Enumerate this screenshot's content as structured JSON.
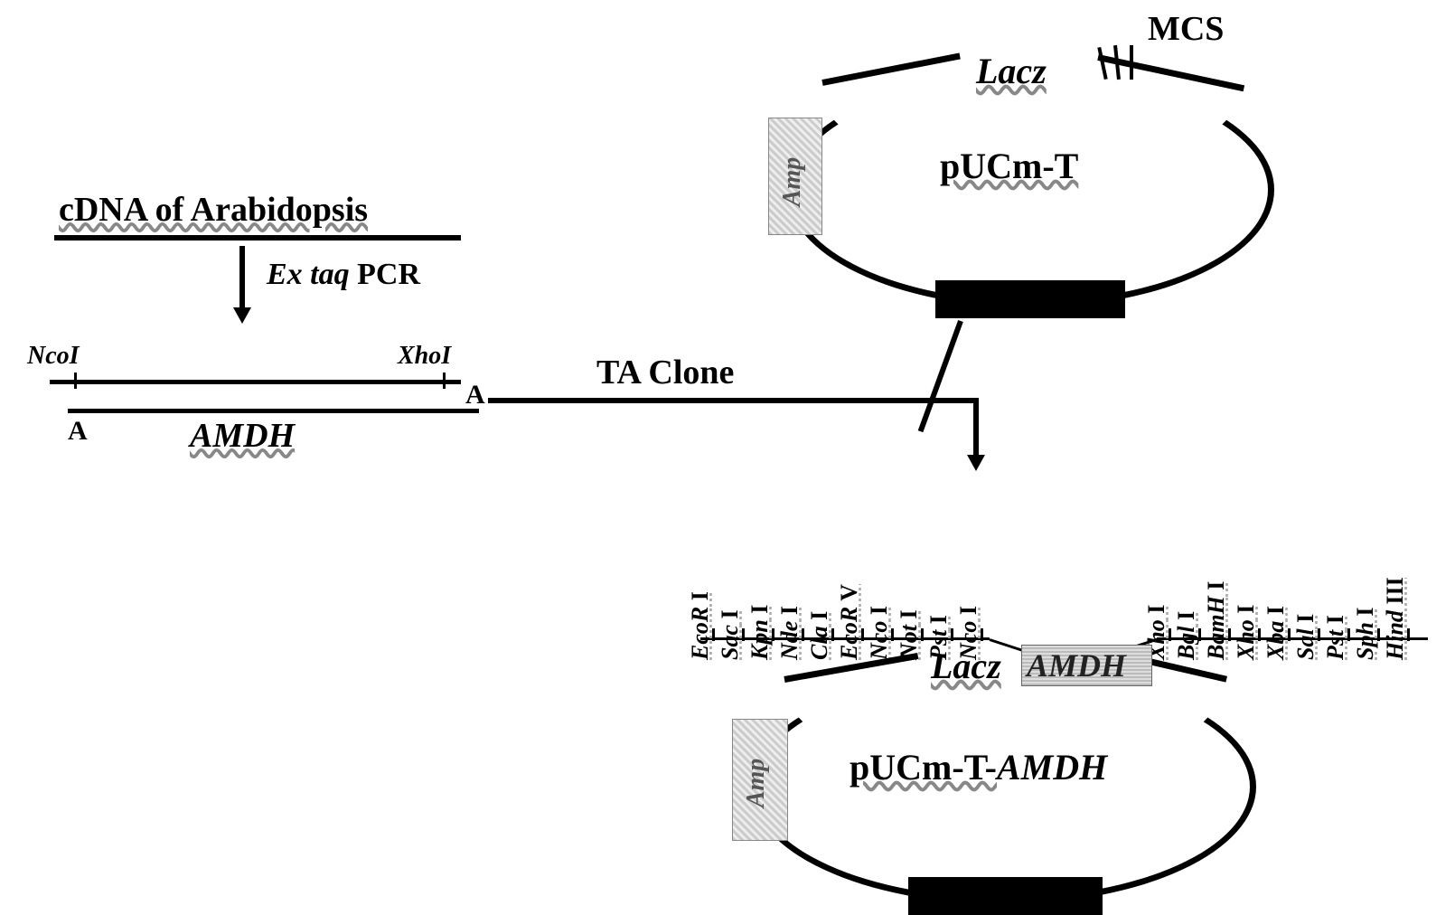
{
  "left": {
    "cdna_title": "cDNA of Arabidopsis",
    "pcr_italic": "Ex taq",
    "pcr_rest": " PCR",
    "ncoI": "NcoI",
    "xhoI": "XhoI",
    "a_left": "A",
    "a_right": "A",
    "amdh": "AMDH",
    "ta_clone": "TA Clone"
  },
  "plasmid1": {
    "mcs": "MCS",
    "lacz": "Lacz",
    "name": "pUCm-T",
    "amp": "Amp"
  },
  "plasmid2": {
    "lacz": "Lacz",
    "amdh": "AMDH",
    "name_prefix": "pUCm-T-",
    "name_italic": "AMDH",
    "amp": "Amp"
  },
  "enzymes_left": [
    {
      "name": "EcoR",
      "num": "I"
    },
    {
      "name": "Sac",
      "num": "I"
    },
    {
      "name": "Kpn",
      "num": "I"
    },
    {
      "name": "Nde",
      "num": "I"
    },
    {
      "name": "Cla",
      "num": "I"
    },
    {
      "name": "EcoR",
      "num": "V"
    },
    {
      "name": "Nco",
      "num": "I"
    },
    {
      "name": "Not",
      "num": "I"
    },
    {
      "name": "Pst",
      "num": "I"
    },
    {
      "name": "Nco",
      "num": "I"
    }
  ],
  "enzymes_right": [
    {
      "name": "Xho",
      "num": "I"
    },
    {
      "name": "Bgl",
      "num": "I"
    },
    {
      "name": "BamH",
      "num": "I"
    },
    {
      "name": "Xho",
      "num": "I"
    },
    {
      "name": "Xba",
      "num": "I"
    },
    {
      "name": "Sal",
      "num": "I"
    },
    {
      "name": "Pst",
      "num": "I"
    },
    {
      "name": "Sph",
      "num": "I"
    },
    {
      "name": "Hind",
      "num": "III"
    }
  ],
  "style": {
    "enz_font": 26,
    "label_font": 36,
    "title_font": 40,
    "small_font": 26
  }
}
